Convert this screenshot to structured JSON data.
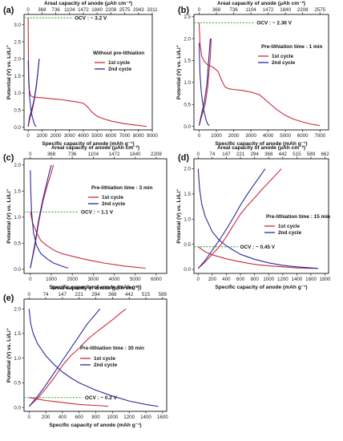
{
  "colors": {
    "cycle1": "#cc2b3a",
    "cycle2": "#2a2a9e",
    "ocv_line": "#2e9e2e"
  },
  "chart_data": [
    {
      "panel": "(a)",
      "type": "line",
      "xlabel": "Specific capacity of anode (mAh g⁻¹)",
      "x2label": "Areal capacity of anode (μAh cm⁻²)",
      "ylabel": "Potential (V) vs. Li/Li⁺",
      "xlim": [
        -300,
        9000
      ],
      "ylim": [
        -0.08,
        3.3
      ],
      "xticks": [
        0,
        1000,
        2000,
        3000,
        4000,
        5000,
        6000,
        7000,
        8000,
        9000
      ],
      "yticks": [
        0.0,
        0.5,
        1.0,
        1.5,
        2.0,
        2.5,
        3.0
      ],
      "top_ticks": [
        "0",
        "368",
        "736",
        "1104",
        "1472",
        "1840",
        "2208",
        "2575",
        "2943",
        "3311"
      ],
      "annotation": "Without pre-lithiation",
      "ocv_label": "OCV : ~ 3.2 V",
      "ocv_value": 3.2,
      "ocv_x_end": 3200,
      "series": [
        {
          "name": "1st cycle",
          "color_key": "cycle1",
          "x": [
            0,
            20,
            40,
            80,
            150,
            250,
            400,
            700,
            1000,
            1500,
            2000,
            2500,
            3000,
            3500,
            4000,
            4300,
            4600,
            5000,
            5500,
            6000,
            7000,
            8000,
            8600
          ],
          "y": [
            3.2,
            2.0,
            1.5,
            1.1,
            0.95,
            0.9,
            0.88,
            0.87,
            0.86,
            0.84,
            0.82,
            0.8,
            0.77,
            0.74,
            0.7,
            0.6,
            0.45,
            0.32,
            0.24,
            0.18,
            0.1,
            0.05,
            0.02
          ]
        },
        {
          "name": "1st cycle",
          "color_key": "cycle1",
          "x": [
            0,
            150,
            300,
            450,
            600,
            700,
            800
          ],
          "y": [
            0.02,
            0.3,
            0.5,
            0.8,
            1.2,
            1.6,
            2.0
          ]
        },
        {
          "name": "2nd cycle",
          "color_key": "cycle2",
          "x": [
            0,
            40,
            100,
            200,
            300,
            400,
            500,
            600
          ],
          "y": [
            1.95,
            1.3,
            0.9,
            0.5,
            0.3,
            0.15,
            0.05,
            0.02
          ]
        },
        {
          "name": "2nd cycle",
          "color_key": "cycle2",
          "x": [
            0,
            100,
            250,
            400,
            550,
            700,
            800
          ],
          "y": [
            0.02,
            0.3,
            0.5,
            0.75,
            1.1,
            1.6,
            2.0
          ]
        }
      ]
    },
    {
      "panel": "(b)",
      "type": "line",
      "xlabel": "Specific capacity of anode (mAh g⁻¹)",
      "x2label": "Areal capacity of anode (μAh cm⁻²)",
      "ylabel": "Potential (V) vs. Li/Li⁺",
      "xlim": [
        -300,
        7500
      ],
      "ylim": [
        -0.08,
        2.55
      ],
      "xticks": [
        0,
        1000,
        2000,
        3000,
        4000,
        5000,
        6000,
        7000
      ],
      "yticks": [
        0.0,
        0.5,
        1.0,
        1.5,
        2.0,
        2.5
      ],
      "top_ticks": [
        "0",
        "368",
        "736",
        "1104",
        "1472",
        "1840",
        "2208",
        "2575"
      ],
      "annotation": "Pre-lithiation time : 1 min",
      "ocv_label": "OCV : ~ 2.36 V",
      "ocv_value": 2.36,
      "ocv_x_end": 3200,
      "series": [
        {
          "name": "1st cycle",
          "color_key": "cycle1",
          "x": [
            0,
            50,
            150,
            300,
            500,
            800,
            1100,
            1300,
            1500,
            1700,
            2000,
            2500,
            3000,
            3500,
            4000,
            4500,
            5000,
            5500,
            6000,
            6500,
            7000
          ],
          "y": [
            2.36,
            1.9,
            1.6,
            1.48,
            1.4,
            1.35,
            1.25,
            1.05,
            0.9,
            0.86,
            0.84,
            0.82,
            0.78,
            0.72,
            0.55,
            0.38,
            0.25,
            0.16,
            0.1,
            0.05,
            0.02
          ]
        },
        {
          "name": "1st cycle",
          "color_key": "cycle1",
          "x": [
            0,
            200,
            350,
            500,
            650,
            700
          ],
          "y": [
            0.02,
            0.3,
            0.5,
            0.9,
            1.6,
            2.0
          ]
        },
        {
          "name": "2nd cycle",
          "color_key": "cycle2",
          "x": [
            0,
            50,
            120,
            250,
            400,
            500,
            600
          ],
          "y": [
            1.9,
            1.2,
            0.8,
            0.4,
            0.15,
            0.05,
            0.02
          ]
        },
        {
          "name": "2nd cycle",
          "color_key": "cycle2",
          "x": [
            0,
            150,
            300,
            450,
            550,
            650
          ],
          "y": [
            0.02,
            0.3,
            0.55,
            0.95,
            1.5,
            2.0
          ]
        }
      ]
    },
    {
      "panel": "(c)",
      "type": "line",
      "xlabel": "Specific capacity of anode (mAh g⁻¹)",
      "x2label": "Areal capacity of anode (μAh cm⁻²)",
      "ylabel": "Potential (V) vs. Li/Li⁺",
      "xlim": [
        -300,
        6500
      ],
      "ylim": [
        -0.08,
        2.12
      ],
      "xticks": [
        0,
        1000,
        2000,
        3000,
        4000,
        5000,
        6000
      ],
      "yticks": [
        0.0,
        0.5,
        1.0,
        1.5,
        2.0
      ],
      "top_ticks": [
        "0",
        "368",
        "736",
        "1104",
        "1472",
        "1840",
        "2208"
      ],
      "annotation": "Pre-lithiation time : 3 min",
      "ocv_label": "OCV : ~ 1.1 V",
      "ocv_value": 1.1,
      "ocv_x_end": 2300,
      "series": [
        {
          "name": "1st cycle",
          "color_key": "cycle1",
          "x": [
            0,
            100,
            300,
            500,
            800,
            1000,
            1200,
            1500,
            2000,
            2500,
            3000,
            3500,
            4000,
            4500,
            5000,
            5500
          ],
          "y": [
            1.1,
            0.9,
            0.7,
            0.55,
            0.45,
            0.4,
            0.35,
            0.3,
            0.25,
            0.2,
            0.16,
            0.12,
            0.09,
            0.06,
            0.04,
            0.02
          ]
        },
        {
          "name": "1st cycle",
          "color_key": "cycle1",
          "x": [
            0,
            200,
            400,
            600,
            800,
            1000,
            1100
          ],
          "y": [
            0.02,
            0.4,
            0.9,
            1.3,
            1.6,
            1.85,
            2.0
          ]
        },
        {
          "name": "2nd cycle",
          "color_key": "cycle2",
          "x": [
            0,
            20,
            60,
            150,
            300,
            500,
            800,
            1100,
            1500,
            1800
          ],
          "y": [
            1.9,
            1.5,
            1.1,
            0.7,
            0.45,
            0.3,
            0.2,
            0.12,
            0.06,
            0.02
          ]
        },
        {
          "name": "2nd cycle",
          "color_key": "cycle2",
          "x": [
            0,
            200,
            400,
            600,
            750,
            900,
            1000
          ],
          "y": [
            0.02,
            0.45,
            0.95,
            1.35,
            1.6,
            1.85,
            2.0
          ]
        }
      ]
    },
    {
      "panel": "(d)",
      "type": "line",
      "xlabel": "Specific capacity of anode (mAh g⁻¹)",
      "x2label": "Areal capacity of anode (μAh cm⁻²)",
      "ylabel": "Potential (V) vs. Li/Li⁺",
      "xlim": [
        -60,
        1850
      ],
      "ylim": [
        -0.08,
        2.2
      ],
      "xticks": [
        0,
        200,
        400,
        600,
        800,
        1000,
        1200,
        1400,
        1600,
        1800
      ],
      "yticks": [
        0.0,
        0.5,
        1.0,
        1.5,
        2.0
      ],
      "top_ticks": [
        "0",
        "74",
        "147",
        "221",
        "294",
        "368",
        "442",
        "515",
        "589",
        "662"
      ],
      "annotation": "Pre-lithiation time : 15 min",
      "ocv_label": "OCV : ~ 0.45 V",
      "ocv_value": 0.45,
      "ocv_x_end": 560,
      "series": [
        {
          "name": "1st cycle",
          "color_key": "cycle1",
          "x": [
            0,
            100,
            200,
            300,
            400,
            600,
            800,
            1000,
            1200,
            1400,
            1600,
            1700
          ],
          "y": [
            0.45,
            0.35,
            0.29,
            0.25,
            0.21,
            0.15,
            0.1,
            0.07,
            0.05,
            0.03,
            0.02,
            0.02
          ]
        },
        {
          "name": "1st cycle",
          "color_key": "cycle1",
          "x": [
            0,
            100,
            200,
            300,
            400,
            500,
            600,
            700,
            800,
            900,
            1000,
            1100,
            1180
          ],
          "y": [
            0.02,
            0.15,
            0.3,
            0.45,
            0.65,
            0.88,
            1.1,
            1.27,
            1.42,
            1.58,
            1.73,
            1.88,
            2.0
          ]
        },
        {
          "name": "2nd cycle",
          "color_key": "cycle2",
          "x": [
            0,
            20,
            50,
            100,
            200,
            300,
            400,
            500,
            600,
            800,
            1000,
            1200,
            1400,
            1600,
            1700
          ],
          "y": [
            2.0,
            1.6,
            1.3,
            1.05,
            0.75,
            0.58,
            0.47,
            0.38,
            0.3,
            0.2,
            0.13,
            0.08,
            0.05,
            0.03,
            0.02
          ]
        },
        {
          "name": "2nd cycle",
          "color_key": "cycle2",
          "x": [
            0,
            100,
            200,
            300,
            400,
            500,
            600,
            700,
            800,
            900,
            950
          ],
          "y": [
            0.02,
            0.18,
            0.38,
            0.58,
            0.8,
            1.03,
            1.28,
            1.5,
            1.7,
            1.9,
            2.0
          ]
        }
      ]
    },
    {
      "panel": "(e)",
      "type": "line",
      "xlabel": "Specific capacity of anode (mAh g⁻¹)",
      "x2label": "Areal capacity of anode (μAh cm⁻²)",
      "ylabel": "Potential (V) vs. Li/Li⁺",
      "xlim": [
        -60,
        1650
      ],
      "ylim": [
        -0.08,
        2.2
      ],
      "xticks": [
        0,
        200,
        400,
        600,
        800,
        1000,
        1200,
        1400,
        1600
      ],
      "yticks": [
        0.0,
        0.5,
        1.0,
        1.5,
        2.0
      ],
      "top_ticks": [
        "0",
        "74",
        "147",
        "221",
        "294",
        "368",
        "442",
        "515",
        "589"
      ],
      "annotation": "Pre-lithiation time : 30 min",
      "ocv_label": "OCV : ~ 0.2 V",
      "ocv_value": 0.2,
      "ocv_x_end": 640,
      "series": [
        {
          "name": "1st cycle",
          "color_key": "cycle1",
          "x": [
            0,
            100,
            200,
            300,
            400,
            500,
            600,
            700,
            800,
            900,
            950
          ],
          "y": [
            0.2,
            0.17,
            0.14,
            0.12,
            0.1,
            0.08,
            0.06,
            0.05,
            0.04,
            0.03,
            0.02
          ]
        },
        {
          "name": "1st cycle",
          "color_key": "cycle1",
          "x": [
            0,
            100,
            200,
            300,
            400,
            500,
            600,
            700,
            800,
            900,
            1000,
            1100,
            1160
          ],
          "y": [
            0.02,
            0.18,
            0.38,
            0.6,
            0.85,
            1.05,
            1.2,
            1.38,
            1.52,
            1.65,
            1.78,
            1.92,
            2.0
          ]
        },
        {
          "name": "2nd cycle",
          "color_key": "cycle2",
          "x": [
            0,
            20,
            50,
            100,
            200,
            300,
            400,
            500,
            600,
            800,
            1000,
            1200,
            1400,
            1550
          ],
          "y": [
            2.0,
            1.7,
            1.5,
            1.3,
            1.05,
            0.87,
            0.72,
            0.6,
            0.5,
            0.35,
            0.23,
            0.13,
            0.06,
            0.02
          ]
        },
        {
          "name": "2nd cycle",
          "color_key": "cycle2",
          "x": [
            0,
            100,
            200,
            300,
            400,
            500,
            600,
            700,
            800,
            850
          ],
          "y": [
            0.02,
            0.22,
            0.45,
            0.7,
            0.95,
            1.2,
            1.45,
            1.7,
            1.9,
            2.0
          ]
        }
      ]
    }
  ]
}
